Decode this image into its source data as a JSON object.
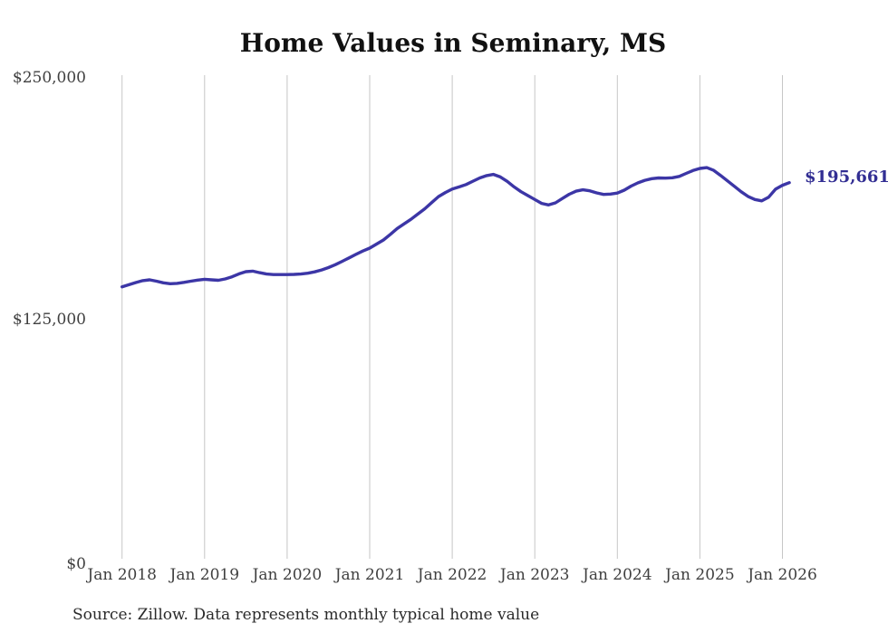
{
  "page": {
    "background": "#ffffff"
  },
  "chart_data": {
    "type": "line",
    "title": "Home Values in Seminary, MS",
    "source": "Source: Zillow. Data represents monthly typical home value",
    "frequency": "monthly",
    "x_start": "Jan 2018",
    "x_end": "Feb 2026",
    "x_ticks": [
      "Jan 2018",
      "Jan 2019",
      "Jan 2020",
      "Jan 2021",
      "Jan 2022",
      "Jan 2023",
      "Jan 2024",
      "Jan 2025",
      "Jan 2026"
    ],
    "y_ticks": [
      "$0",
      "$125,000",
      "$250,000"
    ],
    "ylim": [
      0,
      250000
    ],
    "grid": {
      "vertical": true,
      "horizontal": false
    },
    "legend": "none",
    "line_color": "#3c36a6",
    "end_label": "$195,661",
    "end_label_color": "#322e93",
    "end_value": 195661,
    "series": [
      {
        "name": "Typical home value",
        "values": [
          142100,
          143200,
          144300,
          145300,
          145700,
          145000,
          144200,
          143700,
          143900,
          144400,
          145000,
          145600,
          146000,
          145700,
          145500,
          146200,
          147300,
          148800,
          149900,
          150200,
          149400,
          148700,
          148400,
          148400,
          148400,
          148500,
          148700,
          149100,
          149800,
          150800,
          152000,
          153500,
          155200,
          157000,
          158800,
          160500,
          162000,
          164100,
          166200,
          169100,
          172100,
          174500,
          176800,
          179500,
          182200,
          185400,
          188500,
          190600,
          192400,
          193500,
          194700,
          196400,
          198100,
          199300,
          199900,
          198600,
          196300,
          193500,
          191000,
          189000,
          187000,
          185000,
          184200,
          185300,
          187500,
          189700,
          191300,
          192000,
          191500,
          190400,
          189600,
          189800,
          190300,
          191800,
          193900,
          195600,
          196900,
          197700,
          198100,
          198000,
          198200,
          198900,
          200400,
          201900,
          203000,
          203400,
          202000,
          199400,
          196600,
          193800,
          191000,
          188600,
          187000,
          186300,
          188200,
          192300,
          194300,
          195661
        ]
      }
    ]
  }
}
